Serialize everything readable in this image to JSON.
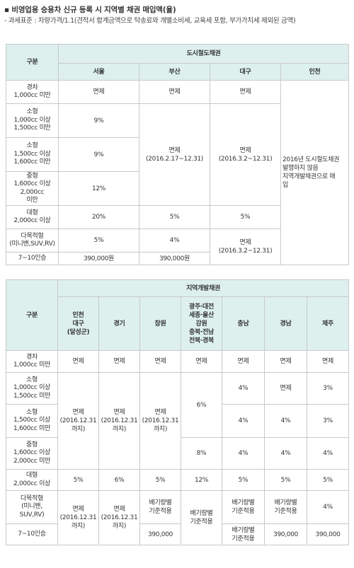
{
  "title": "▪ 비영업용 승용차 신규 등록 시 지역별 채권 매입액(율)",
  "note": "- 과세표준 : 차량가격/1.1(견적서 합계금액으로 탁송료와 개별소비세, 교육세 포함, 부가가치세 제외된 금액)",
  "table1": {
    "h_category": "구분",
    "h_group": "도시철도채권",
    "h_regions": [
      "서울",
      "부산",
      "대구",
      "인천"
    ],
    "rows": [
      {
        "cat": [
          "경차",
          "1,000cc 미만"
        ],
        "seoul": "면제",
        "busan": "면제",
        "daegu": "면제"
      },
      {
        "cat": [
          "소형",
          "1,000cc 이상",
          "1,500cc 미만"
        ],
        "seoul": "9%"
      },
      {
        "cat": [
          "소형",
          "1,500cc 이상",
          "1,600cc 미만"
        ],
        "seoul": "9%"
      },
      {
        "cat": [
          "중형",
          "1,600cc 이상2,000cc",
          "미만"
        ],
        "seoul": "12%"
      },
      {
        "cat": [
          "대형",
          "2,000cc 이상"
        ],
        "seoul": "20%",
        "busan": "5%",
        "daegu": "5%"
      },
      {
        "cat": [
          "다목적형",
          "(미니밴,SUV,RV)"
        ],
        "seoul": "5%",
        "busan": "4%"
      },
      {
        "cat": [
          "7~10인승"
        ],
        "seoul": "390,000원",
        "busan": "390,000원"
      }
    ],
    "busan_merged": [
      "면제",
      "(2016.2.17~12.31)"
    ],
    "daegu_merged": [
      "면제",
      "(2016.3.2~12.31)"
    ],
    "daegu_merged2": [
      "면제",
      "(2016.3.2~12.31)"
    ],
    "incheon_merged": [
      "2016년 도시철도채권",
      "발행하지 않음",
      "지역개발채권으로 매",
      "입"
    ]
  },
  "table2": {
    "h_category": "구분",
    "h_group": "지역개발채권",
    "h_regions": [
      [
        "인천",
        "대구",
        "(달성군)"
      ],
      [
        "경기"
      ],
      [
        "창원"
      ],
      [
        "광주·대전",
        "세종·울산",
        "강원",
        "충북·전남",
        "전북·경북"
      ],
      [
        "충남"
      ],
      [
        "경남"
      ],
      [
        "제주"
      ]
    ],
    "rows": [
      {
        "cat": [
          "경차",
          "1,000cc 미만"
        ],
        "v": [
          "면제",
          "면제",
          "면제",
          "면제",
          "면제",
          "면제",
          "면제"
        ]
      },
      {
        "cat": [
          "소형",
          "1,000cc 이상",
          "1,500cc 미만"
        ],
        "chungnam": "4%",
        "gyeongnam": "면제",
        "jeju": "3%"
      },
      {
        "cat": [
          "소형",
          "1,500cc 이상",
          "1,600cc 미만"
        ],
        "chungnam": "4%",
        "gyeongnam": "4%",
        "jeju": "3%"
      },
      {
        "cat": [
          "중형",
          "1,600cc 이상",
          "2,000cc 미만"
        ],
        "chungnam": "4%",
        "gyeongnam": "4%",
        "jeju": "4%"
      },
      {
        "cat": [
          "대형",
          "2,000cc 이상"
        ],
        "v": [
          "5%",
          "6%",
          "5%",
          "12%",
          "5%",
          "5%",
          "5%"
        ]
      },
      {
        "cat": [
          "다목적형",
          "(미니밴,",
          "SUV,RV)"
        ],
        "chungnam": [
          "배기량별",
          "기준적용"
        ],
        "gyeongnam": [
          "배기량별",
          "기준적용"
        ],
        "jeju": "4%"
      },
      {
        "cat": [
          "7~10인승"
        ],
        "changwon": "390,000",
        "chungnam": [
          "배기량별",
          "기준적용"
        ],
        "gyeongnam": "390,000",
        "jeju": "390,000"
      }
    ],
    "incheon_merged": [
      "면제",
      "(2016.12.31",
      "까지)"
    ],
    "gyeonggi_merged": [
      "면제",
      "(2016.12.31",
      "까지)"
    ],
    "changwon_merged": [
      "면제",
      "(2016.12.31",
      "까지)"
    ],
    "multi_small": "6%",
    "multi_mid": "8%",
    "incheon_merged2": [
      "면제",
      "(2016.12.31",
      "까지)"
    ],
    "gyeonggi_merged2": [
      "면제",
      "(2016.12.31",
      "까지)"
    ],
    "changwon_mpv": [
      "배기량별",
      "기준적용"
    ],
    "multi_merged2": [
      "배기량별",
      "기준적용"
    ]
  }
}
